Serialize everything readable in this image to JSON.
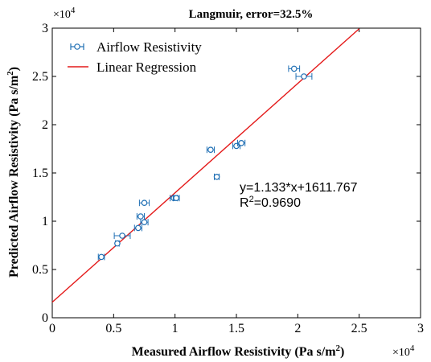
{
  "chart_data": {
    "type": "scatter",
    "title": "Langmuir, error=32.5%",
    "xlabel": "Measured Airflow Resistivity (Pa s/m",
    "xlabel_sup": "2",
    "xlabel_end": ")",
    "ylabel": "Predicted Airflow Resistivity (Pa s/m",
    "ylabel_sup": "2",
    "ylabel_end": ")",
    "x_multiplier_base": "×10",
    "x_multiplier_exp": "4",
    "y_multiplier_base": "×10",
    "y_multiplier_exp": "4",
    "xlim": [
      0,
      30000
    ],
    "ylim": [
      0,
      30000
    ],
    "xticks": [
      0,
      5000,
      10000,
      15000,
      20000,
      25000,
      30000
    ],
    "xtick_labels": [
      "0",
      "0.5",
      "1",
      "1.5",
      "2",
      "2.5",
      "3"
    ],
    "yticks": [
      0,
      5000,
      10000,
      15000,
      20000,
      25000,
      30000
    ],
    "ytick_labels": [
      "0",
      "0.5",
      "1",
      "1.5",
      "2",
      "2.5",
      "3"
    ],
    "grid": false,
    "legend_position": "top-left",
    "legend": [
      "Airflow Resistivity",
      "Linear Regression"
    ],
    "series": [
      {
        "name": "Airflow Resistivity",
        "color": "#1f6fb4",
        "points": [
          {
            "x": 4000,
            "y": 6300,
            "xerr": 250
          },
          {
            "x": 5300,
            "y": 7700,
            "xerr": 150
          },
          {
            "x": 5700,
            "y": 8500,
            "xerr": 650
          },
          {
            "x": 7000,
            "y": 9300,
            "xerr": 300
          },
          {
            "x": 7200,
            "y": 10500,
            "xerr": 300
          },
          {
            "x": 7500,
            "y": 9900,
            "xerr": 300
          },
          {
            "x": 7500,
            "y": 11900,
            "xerr": 400
          },
          {
            "x": 9900,
            "y": 12400,
            "xerr": 300
          },
          {
            "x": 10100,
            "y": 12400,
            "xerr": 250
          },
          {
            "x": 12900,
            "y": 17400,
            "xerr": 300
          },
          {
            "x": 13400,
            "y": 14600,
            "xerr": 200
          },
          {
            "x": 15000,
            "y": 17800,
            "xerr": 300
          },
          {
            "x": 15400,
            "y": 18100,
            "xerr": 300
          },
          {
            "x": 19700,
            "y": 25800,
            "xerr": 450
          },
          {
            "x": 20500,
            "y": 25000,
            "xerr": 650
          }
        ]
      },
      {
        "name": "Linear Regression",
        "color": "#e41a1a",
        "slope": 1.133,
        "intercept": 1611.767,
        "x_range": [
          0,
          25000
        ]
      }
    ],
    "annotations": {
      "equation": "y=1.133*x+1611.767",
      "r2_prefix": "R",
      "r2_sup": "2",
      "r2_value": "=0.9690"
    }
  }
}
